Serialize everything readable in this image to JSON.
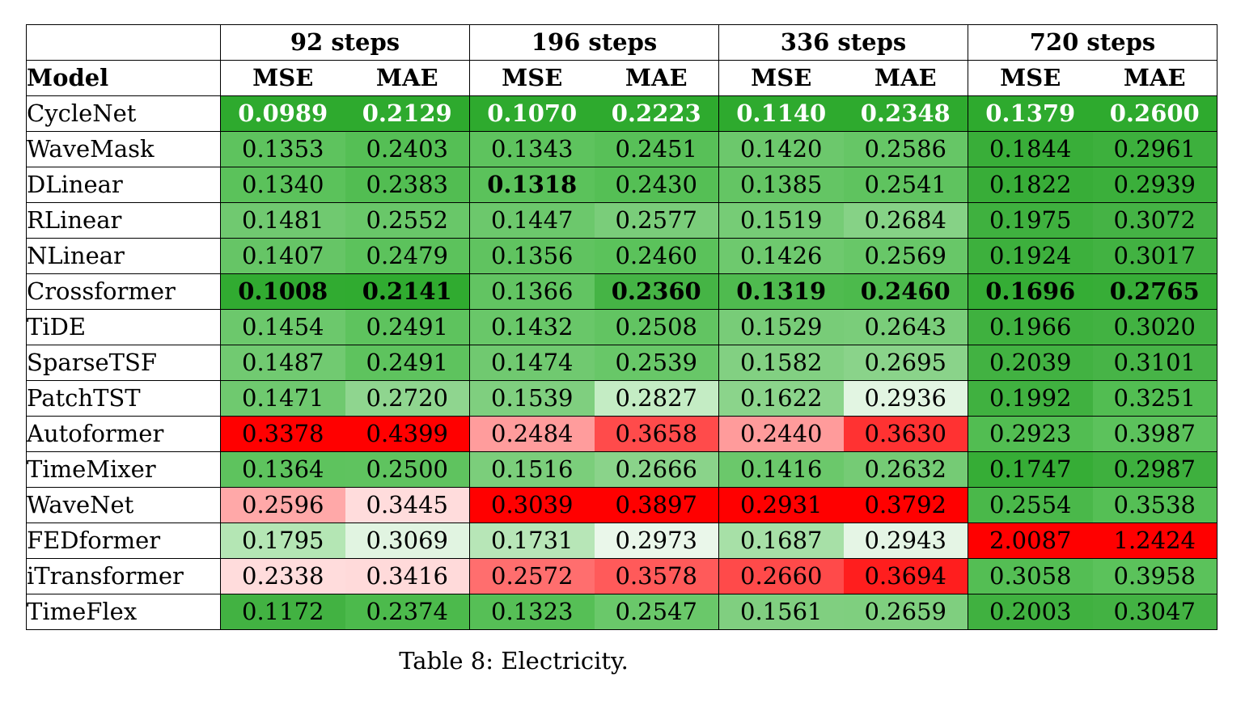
{
  "table": {
    "model_header": "Model",
    "groups": [
      "92 steps",
      "196 steps",
      "336 steps",
      "720 steps"
    ],
    "metrics": [
      "MSE",
      "MAE"
    ],
    "rows": [
      {
        "model": "CycleNet",
        "values": [
          "0.0989",
          "0.2129",
          "0.1070",
          "0.2223",
          "0.1140",
          "0.2348",
          "0.1379",
          "0.2600"
        ],
        "colors": [
          "#2eaa2e",
          "#2eaa2e",
          "#2eaa2e",
          "#2eaa2e",
          "#2eaa2e",
          "#2eaa2e",
          "#2eaa2e",
          "#2eaa2e"
        ],
        "bold": [
          true,
          true,
          true,
          true,
          true,
          true,
          true,
          true
        ]
      },
      {
        "model": "WaveMask",
        "values": [
          "0.1353",
          "0.2403",
          "0.1343",
          "0.2451",
          "0.1420",
          "0.2586",
          "0.1844",
          "0.2961"
        ],
        "colors": [
          "#5ec35e",
          "#55bf55",
          "#5ec35e",
          "#58c058",
          "#6cc86c",
          "#66c666",
          "#39ae39",
          "#3db03d"
        ],
        "bold": [
          false,
          false,
          false,
          false,
          false,
          false,
          false,
          false
        ]
      },
      {
        "model": "DLinear",
        "values": [
          "0.1340",
          "0.2383",
          "0.1318",
          "0.2430",
          "0.1385",
          "0.2541",
          "0.1822",
          "0.2939"
        ],
        "colors": [
          "#5bc25b",
          "#52bd52",
          "#5bc25b",
          "#55bf55",
          "#64c564",
          "#5fc35f",
          "#38ad38",
          "#3baf3b"
        ],
        "bold": [
          false,
          false,
          true,
          false,
          false,
          false,
          false,
          false
        ]
      },
      {
        "model": "RLinear",
        "values": [
          "0.1481",
          "0.2552",
          "0.1447",
          "0.2577",
          "0.1519",
          "0.2684",
          "0.1975",
          "0.3072"
        ],
        "colors": [
          "#70c970",
          "#69c769",
          "#6cc86c",
          "#7acd7a",
          "#76cc76",
          "#86d286",
          "#3fb13f",
          "#45b345"
        ],
        "bold": [
          false,
          false,
          false,
          false,
          false,
          false,
          false,
          false
        ]
      },
      {
        "model": "NLinear",
        "values": [
          "0.1407",
          "0.2479",
          "0.1356",
          "0.2460",
          "0.1426",
          "0.2569",
          "0.1924",
          "0.3017"
        ],
        "colors": [
          "#66c566",
          "#5cc25c",
          "#60c360",
          "#5bc25b",
          "#6ec96e",
          "#68c768",
          "#3db03d",
          "#42b242"
        ],
        "bold": [
          false,
          false,
          false,
          false,
          false,
          false,
          false,
          false
        ]
      },
      {
        "model": "Crossformer",
        "values": [
          "0.1008",
          "0.2141",
          "0.1366",
          "0.2360",
          "0.1319",
          "0.2460",
          "0.1696",
          "0.2765"
        ],
        "colors": [
          "#31ab31",
          "#30ab30",
          "#62c462",
          "#45b445",
          "#4fbb4f",
          "#4cba4c",
          "#35ad35",
          "#37ad37"
        ],
        "bold": [
          true,
          true,
          false,
          true,
          true,
          true,
          true,
          true
        ]
      },
      {
        "model": "TiDE",
        "values": [
          "0.1454",
          "0.2491",
          "0.1432",
          "0.2508",
          "0.1529",
          "0.2643",
          "0.1966",
          "0.3020"
        ],
        "colors": [
          "#6cc86c",
          "#5ec35e",
          "#69c769",
          "#62c462",
          "#78cc78",
          "#7acd7a",
          "#3fb13f",
          "#42b242"
        ],
        "bold": [
          false,
          false,
          false,
          false,
          false,
          false,
          false,
          false
        ]
      },
      {
        "model": "SparseTSF",
        "values": [
          "0.1487",
          "0.2491",
          "0.1474",
          "0.2539",
          "0.1582",
          "0.2695",
          "0.2039",
          "0.3101"
        ],
        "colors": [
          "#71ca71",
          "#5ec35e",
          "#70c970",
          "#68c768",
          "#82d082",
          "#8ad38a",
          "#42b242",
          "#47b447"
        ],
        "bold": [
          false,
          false,
          false,
          false,
          false,
          false,
          false,
          false
        ]
      },
      {
        "model": "PatchTST",
        "values": [
          "0.1471",
          "0.2720",
          "0.1539",
          "0.2827",
          "0.1622",
          "0.2936",
          "0.1992",
          "0.3251"
        ],
        "colors": [
          "#6fc96f",
          "#8fd58f",
          "#7fcf7f",
          "#c4ecc4",
          "#8bd48b",
          "#e2f5e2",
          "#40b140",
          "#52bd52"
        ],
        "bold": [
          false,
          false,
          false,
          false,
          false,
          false,
          false,
          false
        ]
      },
      {
        "model": "Autoformer",
        "values": [
          "0.3378",
          "0.4399",
          "0.2484",
          "0.3658",
          "0.2440",
          "0.3630",
          "0.2923",
          "0.3987"
        ],
        "colors": [
          "#ff0000",
          "#ff0000",
          "#ff9c9c",
          "#ff4b4b",
          "#ff9b9b",
          "#ff3232",
          "#52bd52",
          "#5cc25c"
        ],
        "bold": [
          false,
          false,
          false,
          false,
          false,
          false,
          false,
          false
        ]
      },
      {
        "model": "TimeMixer",
        "values": [
          "0.1364",
          "0.2500",
          "0.1516",
          "0.2666",
          "0.1416",
          "0.2632",
          "0.1747",
          "0.2987"
        ],
        "colors": [
          "#5ec35e",
          "#5fc35f",
          "#7bce7b",
          "#8ad38a",
          "#6bc86b",
          "#75cb75",
          "#36ad36",
          "#3eb03e"
        ],
        "bold": [
          false,
          false,
          false,
          false,
          false,
          false,
          false,
          false
        ]
      },
      {
        "model": "WaveNet",
        "values": [
          "0.2596",
          "0.3445",
          "0.3039",
          "0.3897",
          "0.2931",
          "0.3792",
          "0.2554",
          "0.3538"
        ],
        "colors": [
          "#ffa8a8",
          "#ffdcdc",
          "#ff0000",
          "#ff0000",
          "#ff0000",
          "#ff0000",
          "#4ab84a",
          "#55bf55"
        ],
        "bold": [
          false,
          false,
          false,
          false,
          false,
          false,
          false,
          false
        ]
      },
      {
        "model": "FEDformer",
        "values": [
          "0.1795",
          "0.3069",
          "0.1731",
          "0.2973",
          "0.1687",
          "0.2943",
          "2.0087",
          "1.2424"
        ],
        "colors": [
          "#b4e6b4",
          "#e1f4e1",
          "#b7e6b7",
          "#eaf7ea",
          "#a7e0a7",
          "#e5f5e5",
          "#ff0000",
          "#ff0000"
        ],
        "bold": [
          false,
          false,
          false,
          false,
          false,
          false,
          false,
          false
        ]
      },
      {
        "model": "iTransformer",
        "values": [
          "0.2338",
          "0.3416",
          "0.2572",
          "0.3578",
          "0.2660",
          "0.3694",
          "0.3058",
          "0.3958"
        ],
        "colors": [
          "#ffdcdc",
          "#ffdada",
          "#ff6e6e",
          "#ff5a5a",
          "#ff4a4a",
          "#ff1e1e",
          "#54be54",
          "#5bc25b"
        ],
        "bold": [
          false,
          false,
          false,
          false,
          false,
          false,
          false,
          false
        ]
      },
      {
        "model": "TimeFlex",
        "values": [
          "0.1172",
          "0.2374",
          "0.1323",
          "0.2547",
          "0.1561",
          "0.2659",
          "0.2003",
          "0.3047"
        ],
        "colors": [
          "#42b242",
          "#4cba4c",
          "#56bf56",
          "#6ac86a",
          "#80cf80",
          "#7fcf7f",
          "#40b140",
          "#43b243"
        ],
        "bold": [
          false,
          false,
          false,
          false,
          false,
          false,
          false,
          false
        ]
      }
    ]
  },
  "caption": "Table 8: Electricity."
}
